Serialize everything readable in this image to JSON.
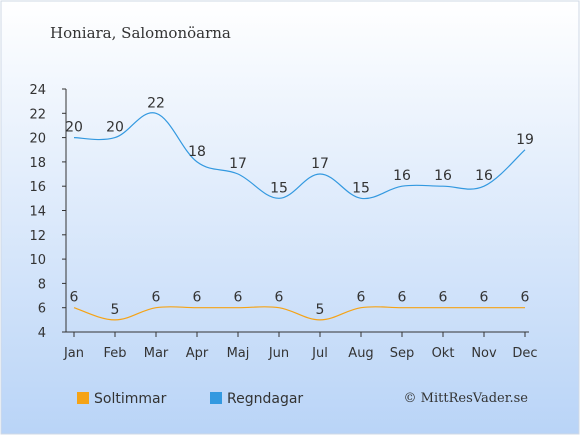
{
  "chart_data": {
    "type": "line",
    "title": "Honiara, Salomonöarna",
    "categories": [
      "Jan",
      "Feb",
      "Mar",
      "Apr",
      "Maj",
      "Jun",
      "Jul",
      "Aug",
      "Sep",
      "Okt",
      "Nov",
      "Dec"
    ],
    "series": [
      {
        "name": "Soltimmar",
        "values": [
          6,
          5,
          6,
          6,
          6,
          6,
          5,
          6,
          6,
          6,
          6,
          6
        ],
        "color": "#f5a316"
      },
      {
        "name": "Regndagar",
        "values": [
          20,
          20,
          22,
          18,
          17,
          15,
          17,
          15,
          16,
          16,
          16,
          19
        ],
        "color": "#3399e0"
      }
    ],
    "yticks": [
      4,
      6,
      8,
      10,
      12,
      14,
      16,
      18,
      20,
      22,
      24
    ],
    "ylim": [
      4,
      24
    ],
    "xlabel": "",
    "ylabel": "",
    "grid": false,
    "legend_position": "bottom-left",
    "background_gradient": [
      "#ffffff",
      "#b9d4f7"
    ]
  },
  "copyright": "© MittResVader.se"
}
